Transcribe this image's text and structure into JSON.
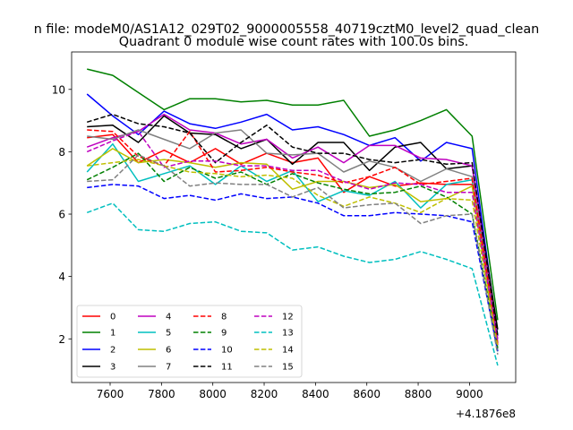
{
  "figure": {
    "suptitle": "n file: modeM0/AS1A12_029T02_9000005558_40719cztM0_level2_quad_clean",
    "title": "Quadrant 0 module wise count rates with 100.0s bins.",
    "offset_label": "+4.1876e8"
  },
  "chart_data": {
    "type": "line",
    "title": "Quadrant 0 module wise count rates with 100.0s bins.",
    "xlabel": "",
    "ylabel": "",
    "x_offset": 418760000,
    "xlim": [
      7450,
      9180
    ],
    "ylim": [
      0.6,
      11.2
    ],
    "xticks": [
      7600,
      7800,
      8000,
      8200,
      8400,
      8600,
      8800,
      9000
    ],
    "yticks": [
      2,
      4,
      6,
      8,
      10
    ],
    "grid": false,
    "legend": {
      "placement": "lower-left",
      "columns": 4
    },
    "x": [
      7510,
      7610,
      7710,
      7810,
      7910,
      8010,
      8110,
      8210,
      8310,
      8410,
      8510,
      8610,
      8710,
      8810,
      8910,
      9010,
      9110
    ],
    "series": [
      {
        "name": "0",
        "color": "#ff0000",
        "dash": false,
        "values": [
          8.45,
          8.55,
          7.65,
          8.05,
          7.65,
          8.1,
          7.6,
          7.95,
          7.65,
          7.8,
          6.7,
          7.2,
          6.9,
          7.0,
          6.95,
          6.95,
          1.8
        ]
      },
      {
        "name": "1",
        "color": "#008000",
        "dash": false,
        "values": [
          10.65,
          10.45,
          9.9,
          9.35,
          9.7,
          9.7,
          9.6,
          9.65,
          9.5,
          9.5,
          9.65,
          8.5,
          8.7,
          9.0,
          9.35,
          8.5,
          2.6
        ]
      },
      {
        "name": "2",
        "color": "#0000ff",
        "dash": false,
        "values": [
          9.85,
          9.15,
          8.55,
          9.3,
          8.9,
          8.75,
          8.95,
          9.2,
          8.7,
          8.8,
          8.55,
          8.2,
          8.45,
          7.7,
          8.3,
          8.1,
          2.1
        ]
      },
      {
        "name": "3",
        "color": "#000000",
        "dash": false,
        "values": [
          8.8,
          8.85,
          8.3,
          9.15,
          8.6,
          8.55,
          8.1,
          8.4,
          7.6,
          8.3,
          8.3,
          7.4,
          8.15,
          8.3,
          7.45,
          7.55,
          2.3
        ]
      },
      {
        "name": "4",
        "color": "#bf00bf",
        "dash": false,
        "values": [
          8.15,
          8.45,
          8.65,
          9.2,
          8.7,
          8.6,
          8.25,
          8.4,
          7.8,
          8.15,
          7.65,
          8.2,
          8.2,
          7.8,
          7.75,
          7.55,
          2.0
        ]
      },
      {
        "name": "5",
        "color": "#00bfbf",
        "dash": false,
        "values": [
          7.35,
          8.25,
          7.05,
          7.3,
          7.55,
          6.95,
          7.55,
          7.05,
          7.4,
          6.4,
          6.75,
          6.6,
          7.05,
          6.2,
          6.95,
          7.1,
          1.7
        ]
      },
      {
        "name": "6",
        "color": "#bfbf00",
        "dash": false,
        "values": [
          7.55,
          8.1,
          7.65,
          7.75,
          7.65,
          7.5,
          7.65,
          7.6,
          6.8,
          7.05,
          7.05,
          6.85,
          6.95,
          6.4,
          6.5,
          6.9,
          1.6
        ]
      },
      {
        "name": "7",
        "color": "#808080",
        "dash": false,
        "values": [
          8.5,
          8.4,
          8.7,
          8.4,
          8.1,
          8.6,
          8.7,
          7.95,
          7.9,
          7.95,
          7.35,
          7.7,
          7.5,
          7.05,
          7.45,
          7.2,
          1.9
        ]
      },
      {
        "name": "8",
        "color": "#ff0000",
        "dash": true,
        "values": [
          8.7,
          8.65,
          7.85,
          7.55,
          8.65,
          7.35,
          7.4,
          7.5,
          7.35,
          7.25,
          7.0,
          7.2,
          7.5,
          6.95,
          7.05,
          7.15,
          1.85
        ]
      },
      {
        "name": "9",
        "color": "#008000",
        "dash": true,
        "values": [
          7.1,
          7.5,
          7.95,
          7.05,
          7.5,
          7.15,
          7.35,
          6.95,
          7.3,
          7.0,
          6.8,
          6.65,
          6.7,
          6.9,
          6.55,
          6.0,
          1.7
        ]
      },
      {
        "name": "10",
        "color": "#0000ff",
        "dash": true,
        "values": [
          6.85,
          6.95,
          6.9,
          6.5,
          6.6,
          6.45,
          6.65,
          6.5,
          6.55,
          6.35,
          5.95,
          5.95,
          6.05,
          6.0,
          5.95,
          5.75,
          1.6
        ]
      },
      {
        "name": "11",
        "color": "#000000",
        "dash": true,
        "values": [
          8.95,
          9.2,
          8.9,
          8.8,
          8.6,
          7.65,
          8.3,
          8.85,
          8.15,
          7.95,
          7.95,
          7.75,
          7.65,
          7.75,
          7.6,
          7.65,
          2.1
        ]
      },
      {
        "name": "12",
        "color": "#bf00bf",
        "dash": true,
        "values": [
          8.0,
          8.35,
          8.65,
          7.5,
          7.7,
          7.7,
          7.55,
          7.55,
          7.4,
          7.4,
          7.05,
          6.8,
          7.0,
          6.95,
          6.7,
          6.7,
          1.9
        ]
      },
      {
        "name": "13",
        "color": "#00bfbf",
        "dash": true,
        "values": [
          6.05,
          6.35,
          5.5,
          5.45,
          5.7,
          5.75,
          5.45,
          5.4,
          4.85,
          4.95,
          4.65,
          4.45,
          4.55,
          4.8,
          4.55,
          4.25,
          1.15
        ]
      },
      {
        "name": "14",
        "color": "#bfbf00",
        "dash": true,
        "values": [
          7.55,
          7.65,
          7.75,
          7.55,
          7.35,
          7.3,
          7.2,
          7.25,
          7.15,
          6.6,
          6.25,
          6.55,
          6.35,
          6.05,
          6.5,
          6.45,
          1.75
        ]
      },
      {
        "name": "15",
        "color": "#808080",
        "dash": true,
        "values": [
          7.05,
          7.1,
          7.9,
          7.55,
          6.9,
          7.0,
          6.95,
          6.95,
          6.55,
          6.85,
          6.2,
          6.3,
          6.35,
          5.7,
          5.95,
          6.0,
          1.5
        ]
      }
    ]
  }
}
